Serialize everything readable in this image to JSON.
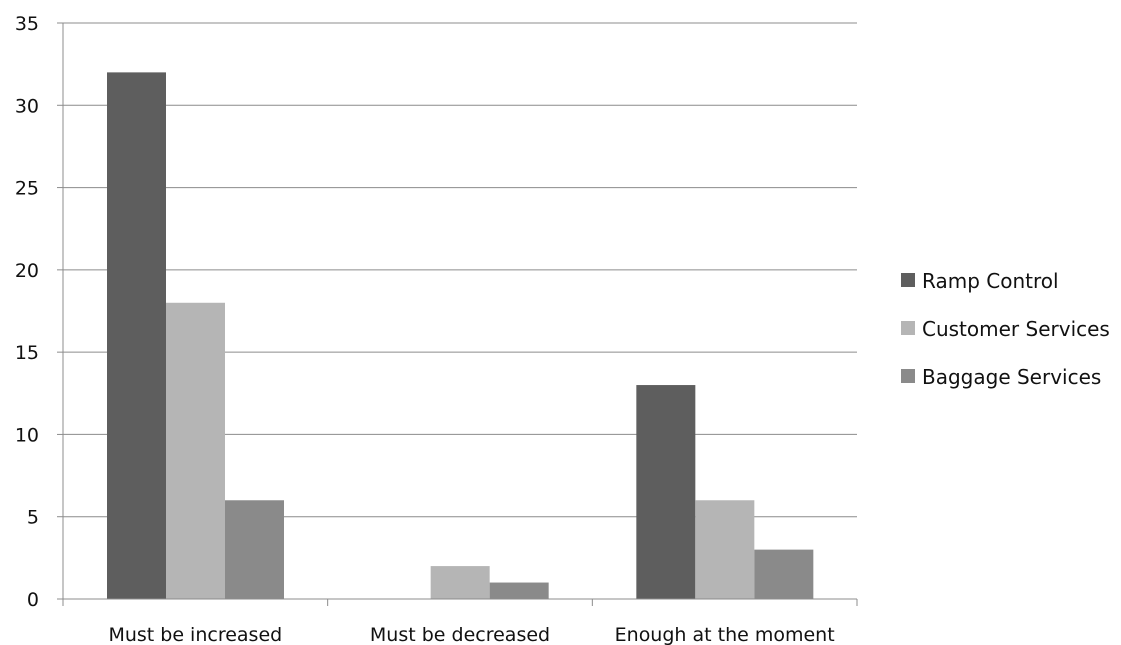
{
  "chart_data": {
    "type": "bar",
    "categories": [
      "Must be increased",
      "Must be decreased",
      "Enough at the moment"
    ],
    "series": [
      {
        "name": "Ramp Control",
        "values": [
          32,
          0,
          13
        ]
      },
      {
        "name": "Customer Services",
        "values": [
          18,
          2,
          6
        ]
      },
      {
        "name": "Baggage Services",
        "values": [
          6,
          1,
          3
        ]
      }
    ],
    "y_ticks": [
      "0",
      "5",
      "10",
      "15",
      "20",
      "25",
      "30",
      "35"
    ],
    "ylim": [
      0,
      35
    ],
    "grid": true,
    "legend_position": "right",
    "colors": {
      "Ramp Control": "#5e5e5e",
      "Customer Services": "#b5b5b5",
      "Baggage Services": "#8a8a8a"
    }
  }
}
